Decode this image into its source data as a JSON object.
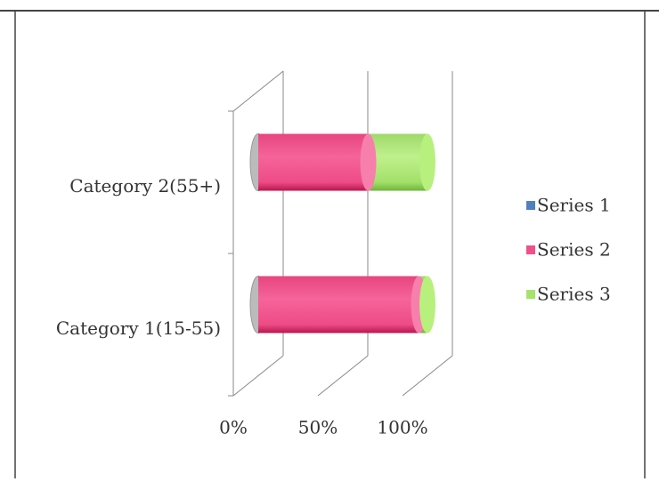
{
  "chart_data": {
    "type": "bar3d_stacked100_horizontal",
    "categories": [
      "Category 1(15-55)",
      "Category 2(55+)"
    ],
    "series": [
      {
        "name": "Series 1",
        "color": "#4f81bd",
        "values": [
          0,
          0
        ]
      },
      {
        "name": "Series 2",
        "color": "#f0508a",
        "values": [
          95,
          65
        ]
      },
      {
        "name": "Series 3",
        "color": "#a6e36b",
        "values": [
          5,
          35
        ]
      }
    ],
    "xlim": [
      0,
      100
    ],
    "xticks": [
      {
        "value": 0,
        "label": "0%"
      },
      {
        "value": 50,
        "label": "50%"
      },
      {
        "value": 100,
        "label": "100%"
      }
    ],
    "grid": true,
    "legend": "right"
  }
}
